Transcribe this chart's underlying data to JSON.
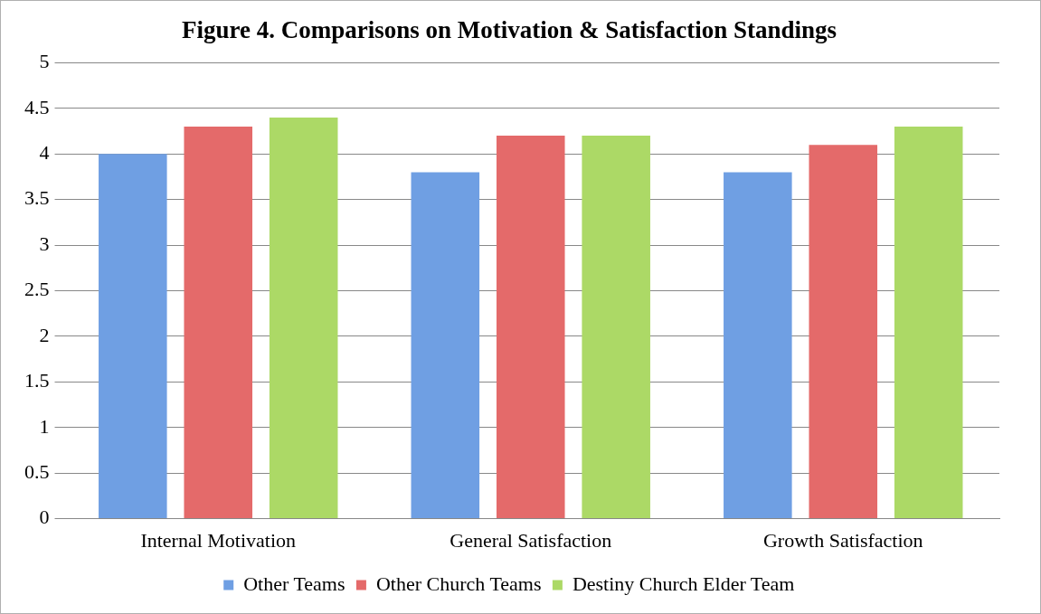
{
  "chart_data": {
    "type": "bar",
    "title": "Figure 4. Comparisons on Motivation & Satisfaction Standings",
    "categories": [
      "Internal Motivation",
      "General Satisfaction",
      "Growth Satisfaction"
    ],
    "series": [
      {
        "name": "Other Teams",
        "color": "#6f9fe3",
        "values": [
          4.0,
          3.8,
          3.8
        ]
      },
      {
        "name": "Other Church Teams",
        "color": "#e46a6a",
        "values": [
          4.3,
          4.2,
          4.1
        ]
      },
      {
        "name": "Destiny Church Elder Team",
        "color": "#acd966",
        "values": [
          4.4,
          4.2,
          4.3
        ]
      }
    ],
    "ylim": [
      0,
      5
    ],
    "yticks": [
      0,
      0.5,
      1,
      1.5,
      2,
      2.5,
      3,
      3.5,
      4,
      4.5,
      5
    ],
    "grid": "y",
    "legend": "bottom"
  }
}
